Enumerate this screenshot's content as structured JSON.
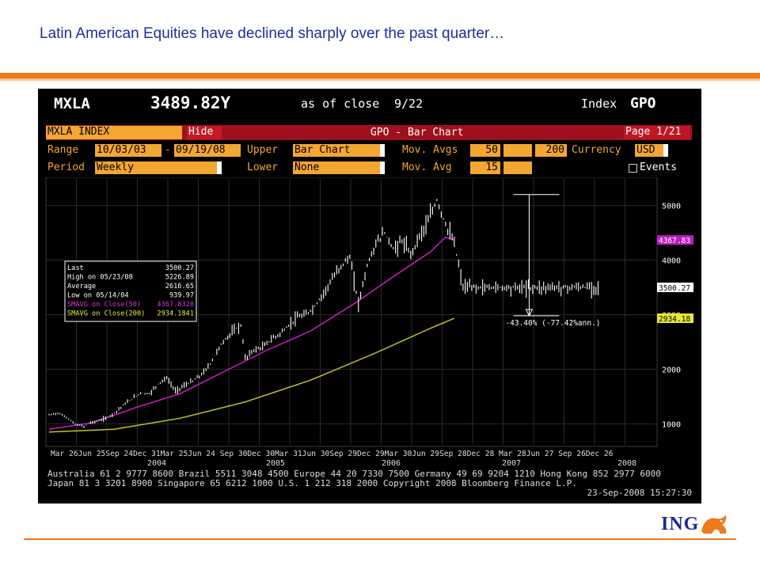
{
  "slide": {
    "title": "Latin American Equities have declined sharply over the past quarter…",
    "logo_text": "ING"
  },
  "terminal": {
    "ticker": "MXLA",
    "price": "3489.82Y",
    "as_of_label": "as of close",
    "as_of_date": "9/22",
    "index_label": "Index",
    "function": "GPO",
    "security_field": "MXLA INDEX",
    "hide_button": "Hide",
    "chart_title": "GPO - Bar Chart",
    "page_label": "Page 1/21",
    "range_label": "Range",
    "range_from": "10/03/03",
    "range_sep": "-",
    "range_to": "09/19/08",
    "upper_label": "Upper",
    "upper_value": "Bar Chart",
    "mov_avgs_label": "Mov. Avgs",
    "mov_avg_1": "50",
    "mov_avg_2": "200",
    "currency_label": "Currency",
    "currency_value": "USD",
    "period_label": "Period",
    "period_value": "Weekly",
    "lower_label": "Lower",
    "lower_value": "None",
    "mov_avg_label": "Mov. Avg",
    "mov_avg_lower": "15",
    "events_label": "Events",
    "footer_line1": "Australia 61 2 9777 8600 Brazil 5511 3048 4500 Europe 44 20 7330 7500 Germany 49 69 9204 1210 Hong Kong 852 2977 6000",
    "footer_line2": "Japan 81 3 3201 8900        Singapore 65 6212 1000       U.S. 1 212 318 2000         Copyright 2008 Bloomberg Finance L.P.",
    "footer_line3": "23-Sep-2008 15:27:30"
  },
  "colors": {
    "price_bars": "#ffffff",
    "sma50": "#c01cc0",
    "sma200": "#b8b820",
    "label_orange": "#f4a632",
    "bar_red": "#a0101c"
  },
  "chart_data": {
    "type": "line",
    "title": "GPO - Bar Chart",
    "legend": {
      "placement": "left-middle",
      "rows": [
        {
          "label": "Last",
          "value": "3500.27"
        },
        {
          "label": "High on  05/23/08",
          "value": "5226.89"
        },
        {
          "label": "Average",
          "value": "2616.65"
        },
        {
          "label": "Low on  05/14/04",
          "value": "939.97"
        },
        {
          "label": "SMAVG on Close(50)",
          "value": "4367.8320"
        },
        {
          "label": "SMAVG on Close(200)",
          "value": "2934.1841"
        }
      ]
    },
    "y_ticks": [
      1000,
      2000,
      3000,
      4000,
      5000
    ],
    "ylim": [
      700,
      5400
    ],
    "y_tags": [
      {
        "value": 4367.83,
        "label": "4367.83"
      },
      {
        "value": 3500.27,
        "label": "3500.27"
      },
      {
        "value": 2934.18,
        "label": "2934.18"
      }
    ],
    "x_tick_labels": "Mar 26Jun 25Sep 24Dec 31Mar 25Jun 24 Sep 30Dec 30Mar 31Jun 30Sep 29Dec 29Mar 30Jun 29Sep 28Dec 28 Mar 28Jun 27 Sep 26Dec 26",
    "year_labels": [
      "2004",
      "2005",
      "2006",
      "2007",
      "2008"
    ],
    "annotation": "-43.40% (-77.42%ann.)",
    "series": [
      {
        "name": "MXLA INDEX",
        "x": [
          0,
          4,
          8,
          12,
          16,
          18,
          22,
          26,
          30,
          34,
          38,
          42,
          46,
          50,
          54,
          58,
          62,
          66,
          70,
          74,
          78,
          82,
          86,
          88,
          90,
          94,
          98,
          102,
          106,
          110,
          114,
          118,
          122,
          126,
          130,
          134,
          138,
          142,
          146,
          150,
          154,
          158,
          162,
          166,
          170,
          174,
          178,
          182,
          186,
          188,
          190,
          194,
          198,
          202,
          206,
          210,
          214,
          218,
          222,
          226,
          228,
          232,
          236,
          240,
          244,
          248,
          252,
          256,
          258
        ],
        "values": [
          1160,
          1200,
          1120,
          990,
          950,
          1010,
          1050,
          1100,
          1200,
          1340,
          1450,
          1570,
          1550,
          1730,
          1840,
          1600,
          1700,
          1780,
          1900,
          2100,
          2400,
          2600,
          2750,
          2800,
          2200,
          2350,
          2400,
          2550,
          2650,
          2800,
          2950,
          3000,
          3150,
          3400,
          3650,
          3900,
          4050,
          3200,
          3900,
          4300,
          4500,
          4200,
          4350,
          4100,
          4450,
          4700,
          5100,
          4650,
          4300,
          3900,
          3500,
          3500,
          3500,
          3500,
          3500,
          3500,
          3500,
          3500,
          3500,
          3500,
          3500,
          3500,
          3500,
          3500,
          3500,
          3500,
          3500,
          3500,
          3500
        ]
      },
      {
        "name": "SMAVG on Close(50)",
        "x": [
          0,
          20,
          40,
          60,
          80,
          100,
          120,
          140,
          160,
          175,
          182,
          186
        ],
        "values": [
          900,
          1020,
          1300,
          1550,
          1950,
          2350,
          2700,
          3200,
          3750,
          4150,
          4420,
          4367.83
        ]
      },
      {
        "name": "SMAVG on Close(200)",
        "x": [
          0,
          30,
          60,
          90,
          120,
          150,
          175,
          186
        ],
        "values": [
          850,
          900,
          1100,
          1400,
          1800,
          2300,
          2750,
          2934.18
        ]
      }
    ]
  }
}
